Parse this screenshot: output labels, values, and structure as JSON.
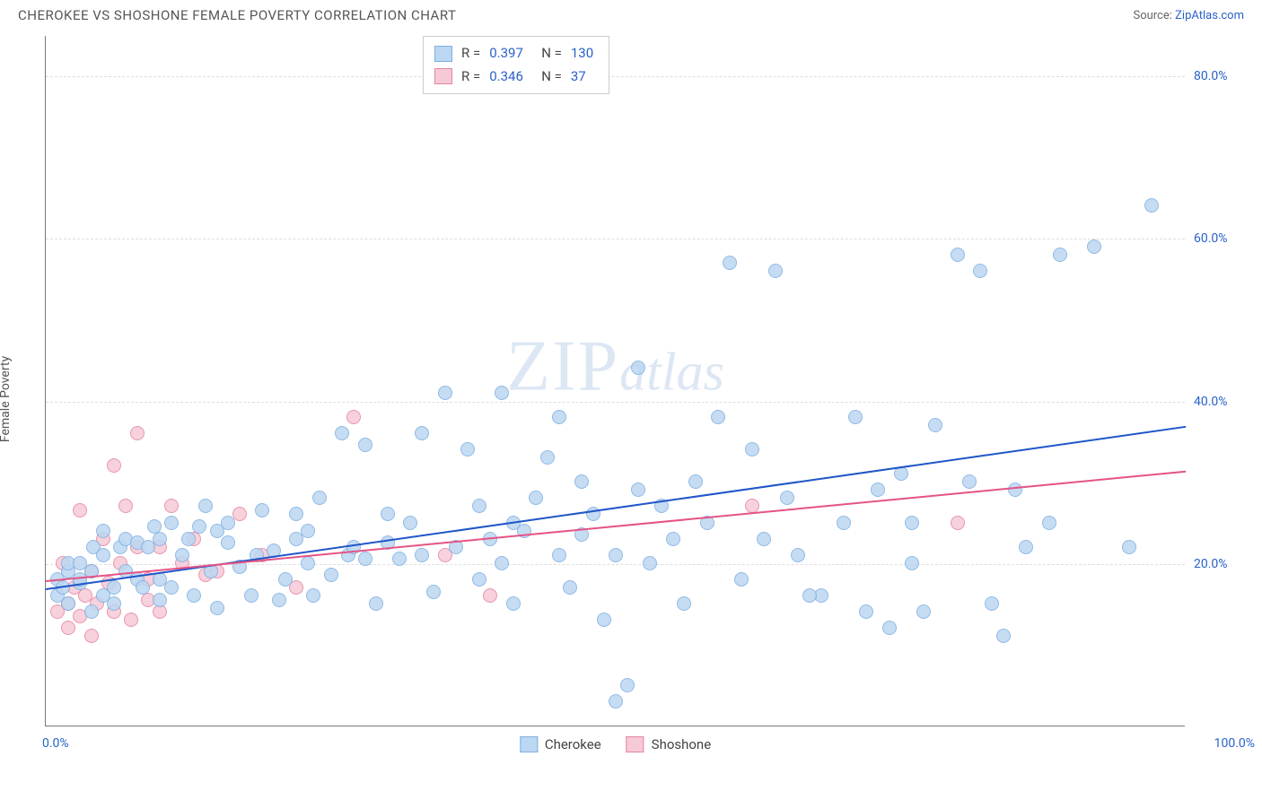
{
  "header": {
    "title": "CHEROKEE VS SHOSHONE FEMALE POVERTY CORRELATION CHART",
    "source_label": "Source: ",
    "source_link": "ZipAtlas.com"
  },
  "chart": {
    "type": "scatter",
    "ylabel": "Female Poverty",
    "watermark_zip": "ZIP",
    "watermark_atlas": "atlas",
    "xlim": [
      0,
      100
    ],
    "ylim": [
      0,
      85
    ],
    "x_ticks": [
      {
        "pos": 0,
        "label": "0.0%"
      },
      {
        "pos": 100,
        "label": "100.0%"
      }
    ],
    "y_ticks": [
      {
        "pos": 20,
        "label": "20.0%"
      },
      {
        "pos": 40,
        "label": "40.0%"
      },
      {
        "pos": 60,
        "label": "60.0%"
      },
      {
        "pos": 80,
        "label": "80.0%"
      }
    ],
    "point_radius": 8,
    "series": {
      "cherokee": {
        "label": "Cherokee",
        "fill": "#bcd7f2",
        "stroke": "#7eafe0",
        "R_label": "R = ",
        "R": "0.397",
        "N_label": "N = ",
        "N": "130",
        "trend": {
          "x0": 0,
          "y0": 17,
          "x1": 100,
          "y1": 37,
          "color": "#1f56c9",
          "width": 2
        },
        "points": [
          [
            1,
            16
          ],
          [
            1,
            18
          ],
          [
            2,
            19
          ],
          [
            2,
            15
          ],
          [
            2,
            20
          ],
          [
            1.5,
            17
          ],
          [
            3,
            17.5
          ],
          [
            3,
            18
          ],
          [
            3,
            20
          ],
          [
            4,
            19
          ],
          [
            4,
            14
          ],
          [
            4.2,
            22
          ],
          [
            5,
            24
          ],
          [
            5,
            16
          ],
          [
            5,
            21
          ],
          [
            6,
            15
          ],
          [
            6,
            17
          ],
          [
            6.5,
            22
          ],
          [
            7,
            19
          ],
          [
            7,
            23
          ],
          [
            8,
            18
          ],
          [
            8,
            22.5
          ],
          [
            8.5,
            17
          ],
          [
            9,
            22
          ],
          [
            9.5,
            24.5
          ],
          [
            10,
            18
          ],
          [
            10,
            23
          ],
          [
            10,
            15.5
          ],
          [
            11,
            25
          ],
          [
            11,
            17
          ],
          [
            12,
            21
          ],
          [
            12.5,
            23
          ],
          [
            13,
            16
          ],
          [
            13.5,
            24.5
          ],
          [
            14,
            27
          ],
          [
            14.5,
            19
          ],
          [
            15,
            14.5
          ],
          [
            15,
            24
          ],
          [
            16,
            22.5
          ],
          [
            16,
            25
          ],
          [
            17,
            19.5
          ],
          [
            18,
            16
          ],
          [
            18.5,
            21
          ],
          [
            19,
            26.5
          ],
          [
            20,
            21.5
          ],
          [
            20.5,
            15.5
          ],
          [
            21,
            18
          ],
          [
            22,
            23
          ],
          [
            22,
            26
          ],
          [
            23,
            20
          ],
          [
            23,
            24
          ],
          [
            23.5,
            16
          ],
          [
            24,
            28
          ],
          [
            25,
            18.5
          ],
          [
            26,
            36
          ],
          [
            26.5,
            21
          ],
          [
            27,
            22
          ],
          [
            28,
            34.5
          ],
          [
            28,
            20.5
          ],
          [
            29,
            15
          ],
          [
            30,
            22.5
          ],
          [
            30,
            26
          ],
          [
            31,
            20.5
          ],
          [
            32,
            25
          ],
          [
            33,
            36
          ],
          [
            33,
            21
          ],
          [
            34,
            16.5
          ],
          [
            35,
            41
          ],
          [
            36,
            22
          ],
          [
            37,
            34
          ],
          [
            38,
            18
          ],
          [
            38,
            27
          ],
          [
            39,
            23
          ],
          [
            40,
            41
          ],
          [
            40,
            20
          ],
          [
            41,
            25
          ],
          [
            41,
            15
          ],
          [
            42,
            24
          ],
          [
            43,
            28
          ],
          [
            44,
            33
          ],
          [
            45,
            21
          ],
          [
            45,
            38
          ],
          [
            46,
            17
          ],
          [
            47,
            23.5
          ],
          [
            47,
            30
          ],
          [
            48,
            26
          ],
          [
            49,
            13
          ],
          [
            50,
            21
          ],
          [
            50,
            3
          ],
          [
            51,
            5
          ],
          [
            52,
            29
          ],
          [
            52,
            44
          ],
          [
            53,
            20
          ],
          [
            54,
            27
          ],
          [
            55,
            23
          ],
          [
            56,
            15
          ],
          [
            57,
            30
          ],
          [
            58,
            25
          ],
          [
            59,
            38
          ],
          [
            60,
            57
          ],
          [
            61,
            18
          ],
          [
            62,
            34
          ],
          [
            63,
            23
          ],
          [
            64,
            56
          ],
          [
            65,
            28
          ],
          [
            66,
            21
          ],
          [
            68,
            16
          ],
          [
            70,
            25
          ],
          [
            71,
            38
          ],
          [
            72,
            14
          ],
          [
            73,
            29
          ],
          [
            74,
            12
          ],
          [
            75,
            31
          ],
          [
            76,
            20
          ],
          [
            77,
            14
          ],
          [
            78,
            37
          ],
          [
            80,
            58
          ],
          [
            81,
            30
          ],
          [
            82,
            56
          ],
          [
            83,
            15
          ],
          [
            84,
            11
          ],
          [
            85,
            29
          ],
          [
            86,
            22
          ],
          [
            88,
            25
          ],
          [
            89,
            58
          ],
          [
            92,
            59
          ],
          [
            95,
            22
          ],
          [
            97,
            64
          ],
          [
            76,
            25
          ],
          [
            67,
            16
          ]
        ]
      },
      "shoshone": {
        "label": "Shoshone",
        "fill": "#f6c9d6",
        "stroke": "#e4869f",
        "R_label": "R = ",
        "R": "0.346",
        "N_label": "N = ",
        "N": "37",
        "trend": {
          "x0": 0,
          "y0": 18,
          "x1": 100,
          "y1": 31.5,
          "color": "#e55384",
          "width": 2
        },
        "points": [
          [
            1,
            14
          ],
          [
            1.5,
            20
          ],
          [
            2,
            12
          ],
          [
            2,
            15
          ],
          [
            2.5,
            17
          ],
          [
            3,
            26.5
          ],
          [
            3,
            13.5
          ],
          [
            3.5,
            16
          ],
          [
            4,
            19
          ],
          [
            4,
            11
          ],
          [
            4.5,
            15
          ],
          [
            5,
            23
          ],
          [
            5.5,
            17.5
          ],
          [
            6,
            14
          ],
          [
            6,
            32
          ],
          [
            6.5,
            20
          ],
          [
            7,
            27
          ],
          [
            7.5,
            13
          ],
          [
            8,
            22
          ],
          [
            8,
            36
          ],
          [
            9,
            18
          ],
          [
            9,
            15.5
          ],
          [
            10,
            22
          ],
          [
            10,
            14
          ],
          [
            11,
            27
          ],
          [
            12,
            20
          ],
          [
            13,
            23
          ],
          [
            14,
            18.5
          ],
          [
            15,
            19
          ],
          [
            17,
            26
          ],
          [
            19,
            21
          ],
          [
            22,
            17
          ],
          [
            27,
            38
          ],
          [
            35,
            21
          ],
          [
            39,
            16
          ],
          [
            62,
            27
          ],
          [
            80,
            25
          ]
        ]
      }
    }
  }
}
